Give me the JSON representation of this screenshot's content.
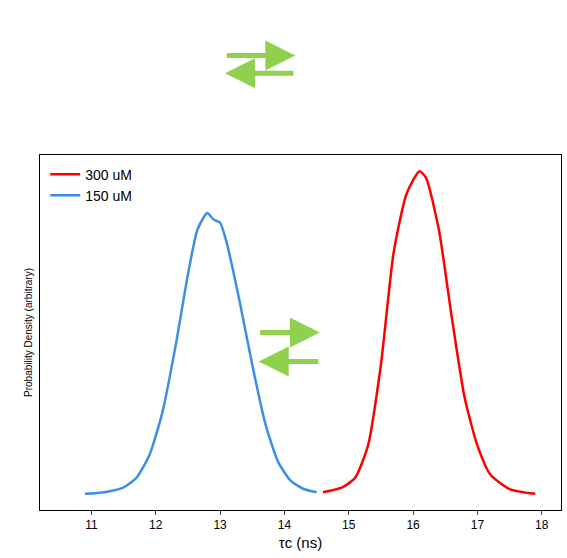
{
  "chart_data": {
    "type": "line",
    "x_label": "τc (ns)",
    "y_label": "Probability Density (arbitrary)",
    "xlim": [
      10.2,
      18.3
    ],
    "xticks": [
      11,
      12,
      13,
      14,
      15,
      16,
      17,
      18
    ],
    "ylim": [
      -0.05,
      1.05
    ],
    "yticks": [],
    "tick_labels": "x",
    "grid": false,
    "legend": "upper left",
    "series": [
      {
        "name": "300 uM",
        "color": "#ff0000",
        "x": [
          14.6,
          14.9,
          15.1,
          15.3,
          15.5,
          15.7,
          15.9,
          16.1,
          16.2,
          16.4,
          16.6,
          16.8,
          17.0,
          17.2,
          17.5,
          17.9
        ],
        "values": [
          0.005,
          0.02,
          0.05,
          0.15,
          0.4,
          0.75,
          0.93,
          1.0,
          0.98,
          0.82,
          0.55,
          0.3,
          0.15,
          0.06,
          0.015,
          0.0
        ]
      },
      {
        "name": "150 uM",
        "color": "#3c8ee6",
        "x": [
          10.9,
          11.2,
          11.5,
          11.7,
          11.9,
          12.1,
          12.3,
          12.5,
          12.65,
          12.8,
          12.9,
          13.0,
          13.1,
          13.3,
          13.5,
          13.7,
          13.9,
          14.1,
          14.3,
          14.5
        ],
        "values": [
          0.0,
          0.005,
          0.02,
          0.05,
          0.12,
          0.25,
          0.45,
          0.68,
          0.82,
          0.87,
          0.85,
          0.84,
          0.78,
          0.6,
          0.4,
          0.22,
          0.1,
          0.04,
          0.015,
          0.005
        ]
      }
    ]
  }
}
